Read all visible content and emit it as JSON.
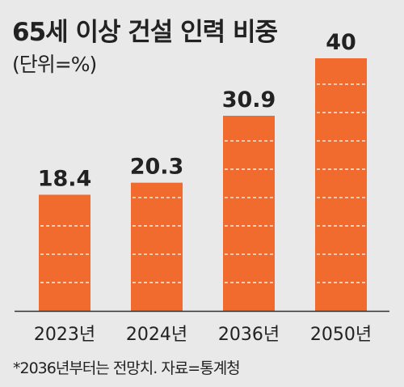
{
  "chart_data": {
    "type": "bar",
    "title": "65세 이상 건설 인력 비중",
    "subtitle": "(단위=%)",
    "categories": [
      "2023년",
      "2024년",
      "2036년",
      "2050년"
    ],
    "values": [
      18.4,
      20.3,
      30.9,
      40
    ],
    "value_labels": [
      "18.4",
      "20.3",
      "30.9",
      "40"
    ],
    "ylim": [
      0,
      40
    ],
    "grid": false,
    "bar_color": "#f26b2e",
    "bar_pattern_color": "#ffffff",
    "axis_color": "#333333"
  },
  "footnote": "*2036년부터는 전망치. 자료=통계청"
}
